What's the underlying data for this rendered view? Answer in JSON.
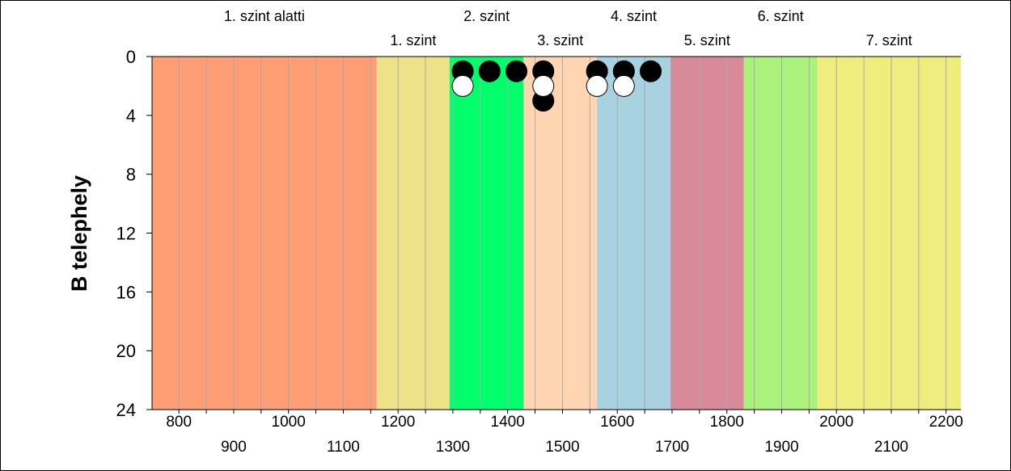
{
  "chart_data": {
    "type": "scatter",
    "ylabel": "B telephely",
    "xlim": [
      751,
      2227
    ],
    "ylim": [
      0,
      24
    ],
    "y_inverted": true,
    "x_ticks_upper": [
      "800",
      "1000",
      "1200",
      "1400",
      "1600",
      "1800",
      "2000",
      "2200"
    ],
    "x_ticks_lower": [
      "900",
      "1100",
      "1300",
      "1500",
      "1700",
      "1900",
      "2100"
    ],
    "y_ticks": [
      "0",
      "4",
      "8",
      "12",
      "16",
      "20",
      "24"
    ],
    "x_minor_step": 50,
    "grid": true,
    "bands": [
      {
        "label": "1. szint alatti",
        "from": 751,
        "to": 1161,
        "color": "#FF9E74",
        "label_row": "top"
      },
      {
        "label": "1. szint",
        "from": 1161,
        "to": 1294,
        "color": "#EEE289",
        "label_row": "bottom"
      },
      {
        "label": "2. szint",
        "from": 1294,
        "to": 1429,
        "color": "#00FF6A",
        "label_row": "top"
      },
      {
        "label": "3. szint",
        "from": 1429,
        "to": 1563,
        "color": "#FFD6B1",
        "label_row": "bottom"
      },
      {
        "label": "4. szint",
        "from": 1563,
        "to": 1697,
        "color": "#A9D2E1",
        "label_row": "top"
      },
      {
        "label": "5. szint",
        "from": 1697,
        "to": 1831,
        "color": "#D8899A",
        "label_row": "bottom"
      },
      {
        "label": "6. szint",
        "from": 1831,
        "to": 1965,
        "color": "#AAF27C",
        "label_row": "top"
      },
      {
        "label": "7. szint",
        "from": 1965,
        "to": 2227,
        "color": "#EEED7E",
        "label_row": "bottom"
      }
    ],
    "series": [
      {
        "color": "#000000",
        "points": [
          {
            "x": 1318,
            "y": 1
          },
          {
            "x": 1367,
            "y": 1
          },
          {
            "x": 1416,
            "y": 1
          },
          {
            "x": 1465,
            "y": 1
          },
          {
            "x": 1465,
            "y": 3
          },
          {
            "x": 1563,
            "y": 1
          },
          {
            "x": 1612,
            "y": 1
          },
          {
            "x": 1661,
            "y": 1
          }
        ]
      },
      {
        "color": "#FFFFFF",
        "points": [
          {
            "x": 1318,
            "y": 2
          },
          {
            "x": 1465,
            "y": 2
          },
          {
            "x": 1563,
            "y": 2
          },
          {
            "x": 1612,
            "y": 2
          }
        ]
      }
    ]
  }
}
